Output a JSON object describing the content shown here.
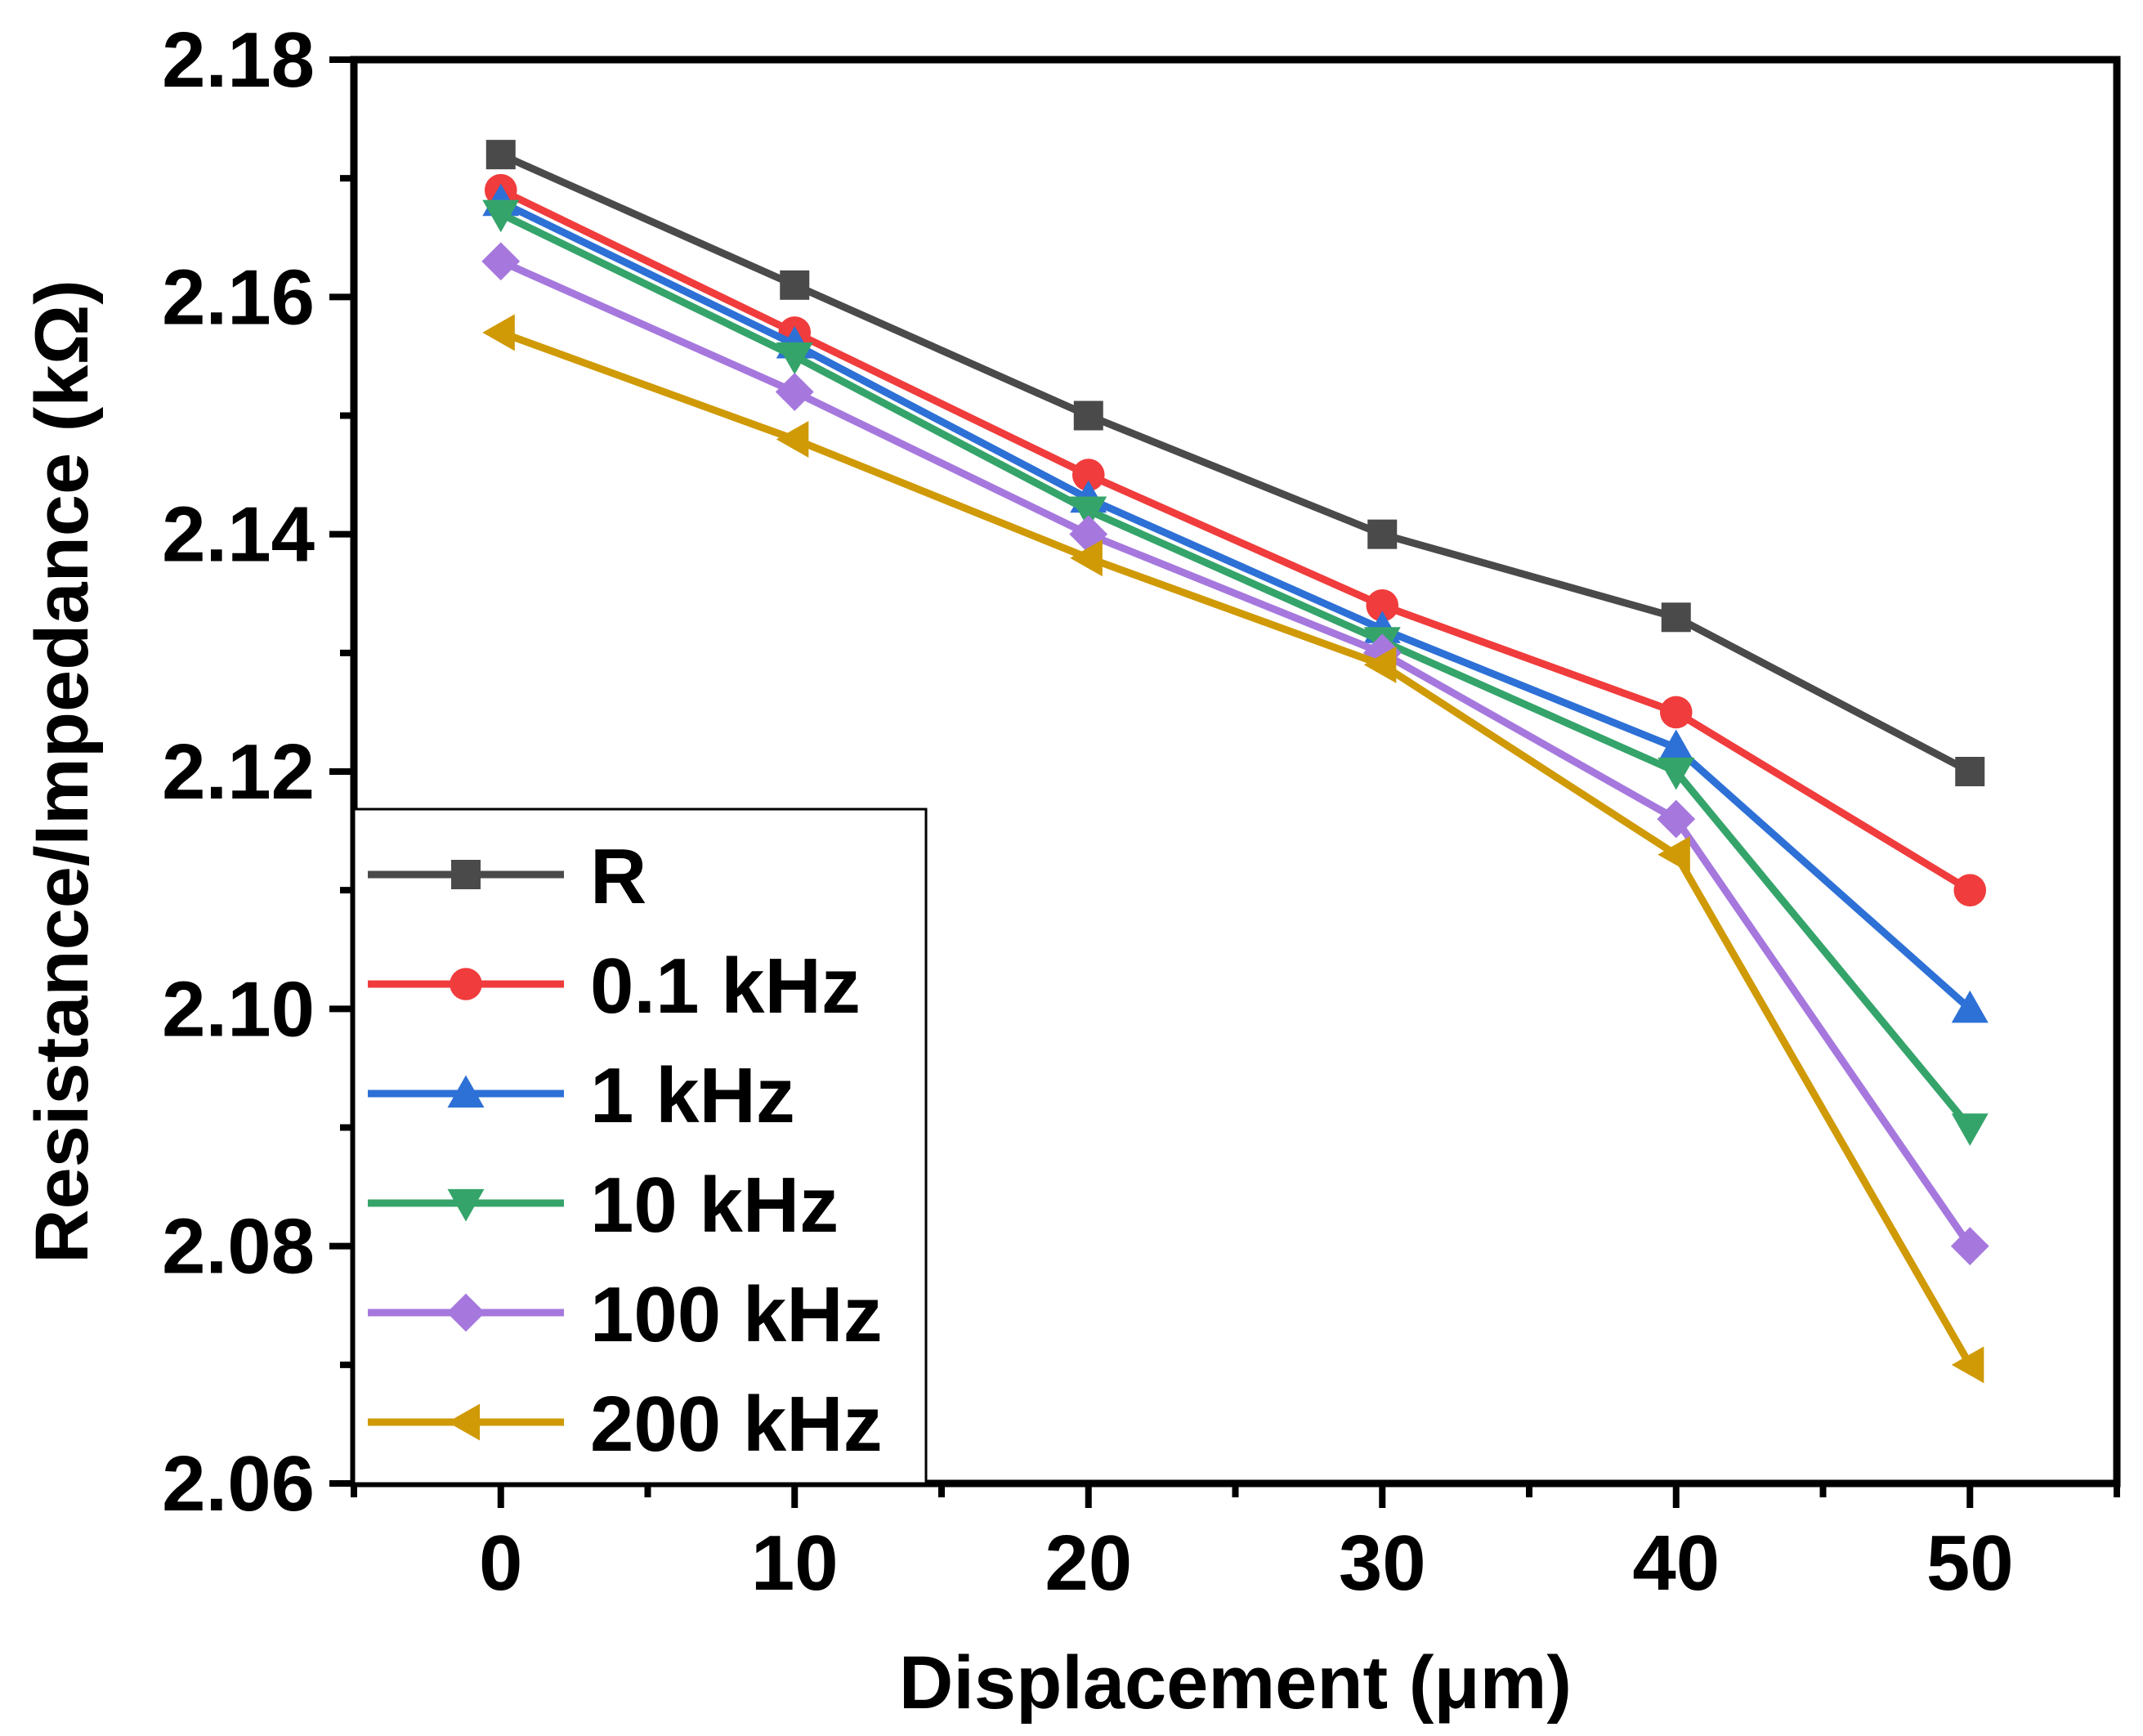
{
  "chart_data": {
    "type": "line",
    "xlabel": "Displacement (μm)",
    "ylabel": "Resistance/Impedance (kΩ)",
    "x": [
      0,
      10,
      20,
      30,
      40,
      50
    ],
    "xlim": [
      -5,
      55
    ],
    "ylim": [
      2.06,
      2.18
    ],
    "xticks": [
      0,
      10,
      20,
      30,
      40,
      50
    ],
    "xtick_labels": [
      "0",
      "10",
      "20",
      "30",
      "40",
      "50"
    ],
    "yticks": [
      2.06,
      2.08,
      2.1,
      2.12,
      2.14,
      2.16,
      2.18
    ],
    "ytick_labels": [
      "2.06",
      "2.08",
      "2.10",
      "2.12",
      "2.14",
      "2.16",
      "2.18"
    ],
    "grid": false,
    "legend_position": "bottom-left",
    "series": [
      {
        "name": "R",
        "color": "#4a4a4a",
        "marker": "square",
        "values": [
          2.172,
          2.161,
          2.15,
          2.14,
          2.133,
          2.12
        ]
      },
      {
        "name": "0.1 kHz",
        "color": "#f03c3c",
        "marker": "circle",
        "values": [
          2.169,
          2.157,
          2.145,
          2.134,
          2.125,
          2.11
        ]
      },
      {
        "name": "1 kHz",
        "color": "#2d70d6",
        "marker": "triangle-up",
        "values": [
          2.168,
          2.156,
          2.143,
          2.132,
          2.122,
          2.1
        ]
      },
      {
        "name": "10 kHz",
        "color": "#35a46a",
        "marker": "triangle-down",
        "values": [
          2.167,
          2.155,
          2.142,
          2.131,
          2.12,
          2.09
        ]
      },
      {
        "name": "100 kHz",
        "color": "#a678dd",
        "marker": "diamond",
        "values": [
          2.163,
          2.152,
          2.14,
          2.13,
          2.116,
          2.08
        ]
      },
      {
        "name": "200 kHz",
        "color": "#cf9a06",
        "marker": "triangle-left",
        "values": [
          2.157,
          2.148,
          2.138,
          2.129,
          2.113,
          2.07
        ]
      }
    ]
  }
}
